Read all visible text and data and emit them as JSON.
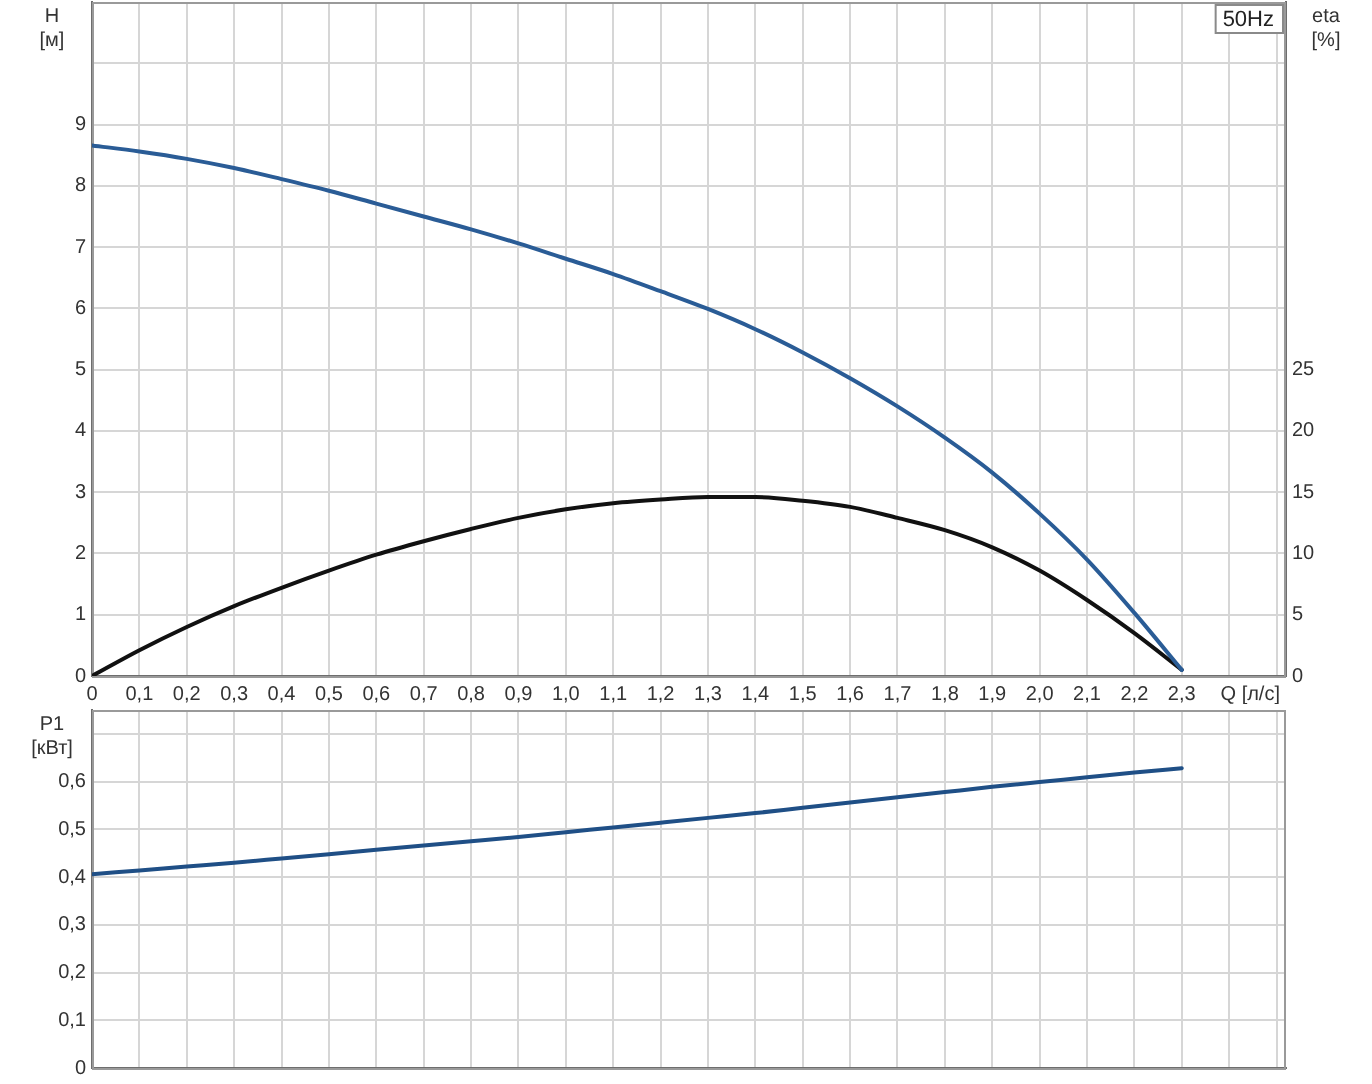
{
  "chart_data": [
    {
      "type": "line",
      "title": "50Hz",
      "xlabel": "Q [л/с]",
      "ylabel": "H\n[м]",
      "y2label": "eta\n[%]",
      "x": [
        0,
        0.1,
        0.2,
        0.3,
        0.4,
        0.5,
        0.6,
        0.7,
        0.8,
        0.9,
        1.0,
        1.1,
        1.2,
        1.3,
        1.4,
        1.5,
        1.6,
        1.7,
        1.8,
        1.9,
        2.0,
        2.1,
        2.2,
        2.3
      ],
      "series": [
        {
          "color": "#2a5c96",
          "values": [
            8.66,
            8.56,
            8.44,
            8.29,
            8.11,
            7.92,
            7.71,
            7.5,
            7.29,
            7.06,
            6.81,
            6.56,
            6.28,
            5.99,
            5.66,
            5.28,
            4.86,
            4.4,
            3.89,
            3.32,
            2.65,
            1.9,
            1.03,
            0.1
          ]
        },
        {
          "color": "#111111",
          "axis": "y2",
          "values": [
            0,
            2.1,
            4.0,
            5.7,
            7.2,
            8.6,
            9.9,
            11.0,
            12.0,
            12.9,
            13.6,
            14.1,
            14.4,
            14.6,
            14.6,
            14.3,
            13.8,
            12.9,
            11.9,
            10.5,
            8.6,
            6.2,
            3.5,
            0.5
          ]
        }
      ],
      "xlim": [
        0,
        2.52
      ],
      "xticks": [
        0,
        {
          "value": 0.1,
          "label": "0,1"
        },
        {
          "value": 0.2,
          "label": "0,2"
        },
        {
          "value": 0.3,
          "label": "0,3"
        },
        {
          "value": 0.4,
          "label": "0,4"
        },
        {
          "value": 0.5,
          "label": "0,5"
        },
        {
          "value": 0.6,
          "label": "0,6"
        },
        {
          "value": 0.7,
          "label": "0,7"
        },
        {
          "value": 0.8,
          "label": "0,8"
        },
        {
          "value": 0.9,
          "label": "0,9"
        },
        {
          "value": 1,
          "label": "1,0"
        },
        {
          "value": 1.1,
          "label": "1,1"
        },
        {
          "value": 1.2,
          "label": "1,2"
        },
        {
          "value": 1.3,
          "label": "1,3"
        },
        {
          "value": 1.4,
          "label": "1,4"
        },
        {
          "value": 1.5,
          "label": "1,5"
        },
        {
          "value": 1.6,
          "label": "1,6"
        },
        {
          "value": 1.7,
          "label": "1,7"
        },
        {
          "value": 1.8,
          "label": "1,8"
        },
        {
          "value": 1.9,
          "label": "1,9"
        },
        {
          "value": 2,
          "label": "2,0"
        },
        {
          "value": 2.1,
          "label": "2,1"
        },
        {
          "value": 2.2,
          "label": "2,2"
        },
        {
          "value": 2.3,
          "label": "2,3"
        },
        {
          "value": 2.4,
          "label": null
        },
        {
          "value": 2.5,
          "label": null
        }
      ],
      "ylim": [
        0,
        11
      ],
      "yticks": [
        0,
        1,
        2,
        3,
        4,
        5,
        6,
        7,
        8,
        9,
        {
          "value": 10,
          "label": null
        }
      ],
      "y2lim": [
        0,
        55
      ],
      "y2ticks": [
        0,
        5,
        10,
        15,
        20,
        25
      ],
      "grid": true,
      "marker": "none",
      "line_style": "solid"
    },
    {
      "type": "line",
      "ylabel": "P1\n[кВт]",
      "x": [
        0,
        0.1,
        0.2,
        0.3,
        0.4,
        0.5,
        0.6,
        0.7,
        0.8,
        0.9,
        1.0,
        1.1,
        1.2,
        1.3,
        1.4,
        1.5,
        1.6,
        1.7,
        1.8,
        1.9,
        2.0,
        2.1,
        2.2,
        2.3
      ],
      "series": [
        {
          "color": "#1f4f86",
          "values": [
            0.406,
            0.414,
            0.422,
            0.43,
            0.439,
            0.448,
            0.457,
            0.466,
            0.475,
            0.484,
            0.494,
            0.504,
            0.514,
            0.524,
            0.534,
            0.545,
            0.556,
            0.567,
            0.578,
            0.589,
            0.599,
            0.609,
            0.619,
            0.628
          ]
        }
      ],
      "xlim": [
        0,
        2.52
      ],
      "xticks": [
        0,
        0.1,
        0.2,
        0.3,
        0.4,
        0.5,
        0.6,
        0.7,
        0.8,
        0.9,
        1,
        1.1,
        1.2,
        1.3,
        1.4,
        1.5,
        1.6,
        1.7,
        1.8,
        1.9,
        2,
        2.1,
        2.2,
        2.3,
        2.4,
        2.5
      ],
      "ylim": [
        0,
        0.75
      ],
      "yticks": [
        0,
        {
          "value": 0.1,
          "label": "0,1"
        },
        {
          "value": 0.2,
          "label": "0,2"
        },
        {
          "value": 0.3,
          "label": "0,3"
        },
        {
          "value": 0.4,
          "label": "0,4"
        },
        {
          "value": 0.5,
          "label": "0,5"
        },
        {
          "value": 0.6,
          "label": "0,6"
        },
        {
          "value": 0.7,
          "label": null
        }
      ],
      "grid": true,
      "marker": "none",
      "line_style": "solid",
      "tick_labels": "y"
    }
  ]
}
